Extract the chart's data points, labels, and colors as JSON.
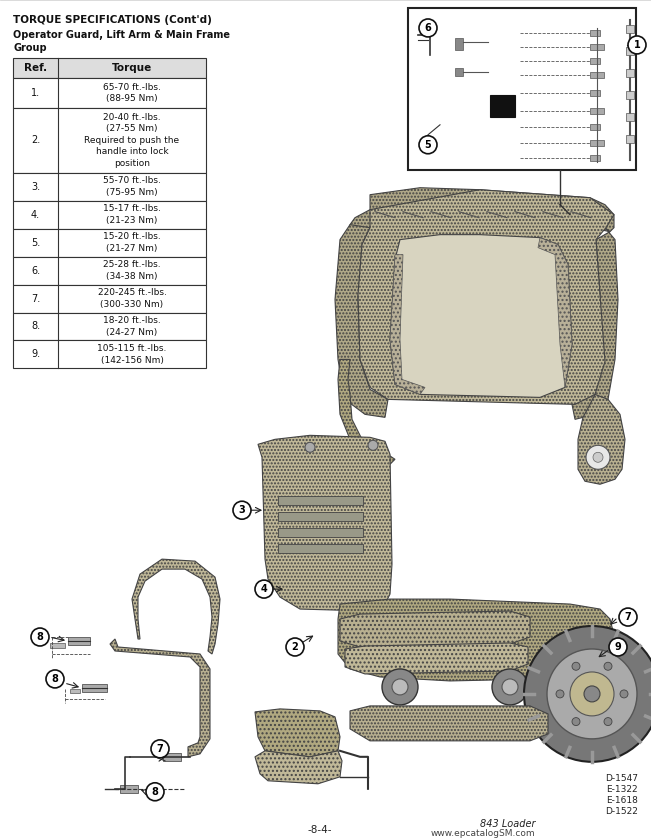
{
  "title": "TORQUE SPECIFICATIONS (Cont’d)",
  "subtitle": "Operator Guard, Lift Arm & Main Frame\nGroup",
  "table_headers": [
    "Ref.",
    "Torque"
  ],
  "table_rows": [
    [
      "1.",
      "65-70 ft.-lbs.\n(88-95 Nm)"
    ],
    [
      "2.",
      "20-40 ft.-lbs.\n(27-55 Nm)\nRequired to push the\nhandle into lock\nposition"
    ],
    [
      "3.",
      "55-70 ft.-lbs.\n(75-95 Nm)"
    ],
    [
      "4.",
      "15-17 ft.-lbs.\n(21-23 Nm)"
    ],
    [
      "5.",
      "15-20 ft.-lbs.\n(21-27 Nm)"
    ],
    [
      "6.",
      "25-28 ft.-lbs.\n(34-38 Nm)"
    ],
    [
      "7.",
      "220-245 ft.-lbs.\n(300-330 Nm)"
    ],
    [
      "8.",
      "18-20 ft.-lbs.\n(24-27 Nm)"
    ],
    [
      "9.",
      "105-115 ft.-lbs.\n(142-156 Nm)"
    ]
  ],
  "footer_left": "-8-4-",
  "footer_right": "www.epcatalogSM.com",
  "footer_model": "843 Loader",
  "part_numbers": [
    "D-1547",
    "E-1322",
    "E-1618",
    "D-1522"
  ],
  "bg_color": "#ffffff",
  "table_bg": "#ffffff",
  "border_color": "#333333",
  "text_color": "#111111",
  "title_color": "#111111",
  "hatch_color": "#888888",
  "stipple_color": "#aaaaaa"
}
